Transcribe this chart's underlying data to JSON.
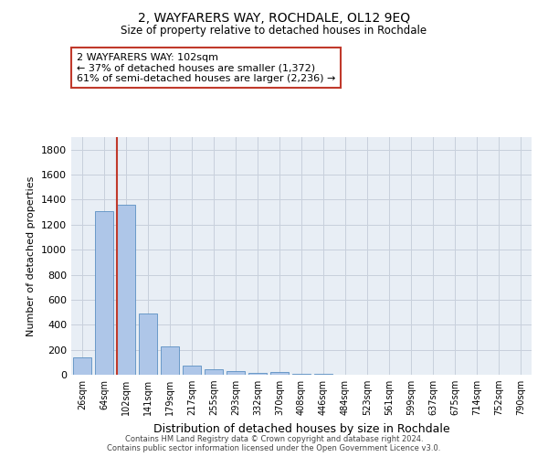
{
  "title": "2, WAYFARERS WAY, ROCHDALE, OL12 9EQ",
  "subtitle": "Size of property relative to detached houses in Rochdale",
  "xlabel": "Distribution of detached houses by size in Rochdale",
  "ylabel": "Number of detached properties",
  "categories": [
    "26sqm",
    "64sqm",
    "102sqm",
    "141sqm",
    "179sqm",
    "217sqm",
    "255sqm",
    "293sqm",
    "332sqm",
    "370sqm",
    "408sqm",
    "446sqm",
    "484sqm",
    "523sqm",
    "561sqm",
    "599sqm",
    "637sqm",
    "675sqm",
    "714sqm",
    "752sqm",
    "790sqm"
  ],
  "values": [
    140,
    1310,
    1360,
    490,
    225,
    75,
    45,
    28,
    15,
    22,
    10,
    5,
    3,
    0,
    0,
    0,
    0,
    0,
    0,
    0,
    0
  ],
  "bar_color": "#aec6e8",
  "bar_edge_color": "#5a8fc2",
  "highlight_index": 2,
  "vline_color": "#c0392b",
  "ylim": [
    0,
    1900
  ],
  "yticks": [
    0,
    200,
    400,
    600,
    800,
    1000,
    1200,
    1400,
    1600,
    1800
  ],
  "annotation_text": "2 WAYFARERS WAY: 102sqm\n← 37% of detached houses are smaller (1,372)\n61% of semi-detached houses are larger (2,236) →",
  "annotation_box_color": "#c0392b",
  "footer_line1": "Contains HM Land Registry data © Crown copyright and database right 2024.",
  "footer_line2": "Contains public sector information licensed under the Open Government Licence v3.0.",
  "background_color": "#ffffff",
  "ax_background_color": "#e8eef5",
  "grid_color": "#c8d0dc"
}
